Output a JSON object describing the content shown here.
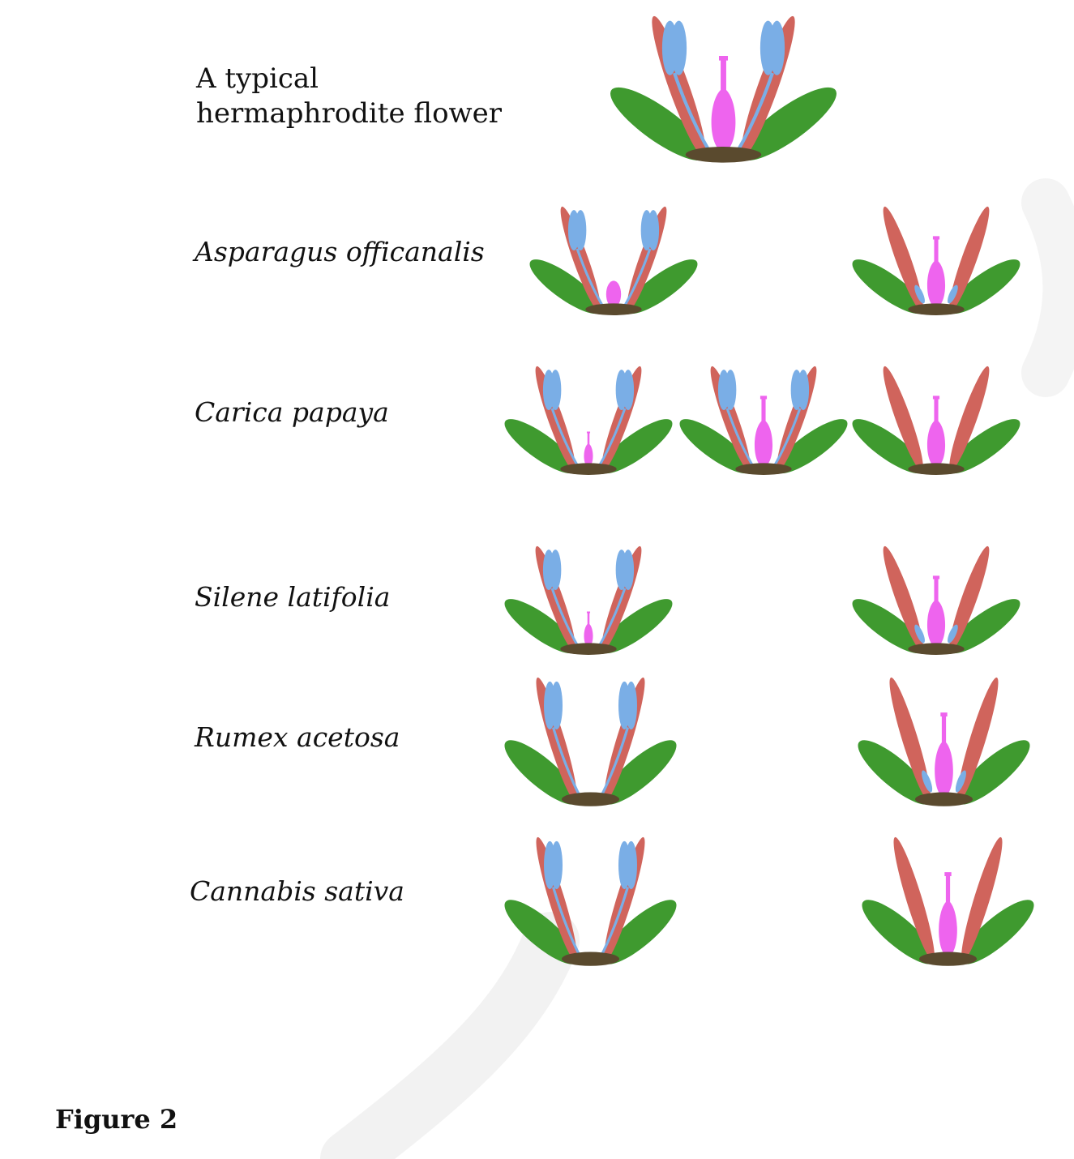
{
  "figure_label": "Figure 2",
  "colors": {
    "sepal": "#3f9a2f",
    "petal": "#d0645c",
    "stamen": "#7aaee6",
    "carpel": "#ee64ee",
    "receptacle": "#5a4a2e"
  },
  "rows": [
    {
      "label": "A typical\nhermaphrodite flower",
      "flowers": [
        {
          "stamens": "full",
          "carpel": "full"
        }
      ]
    },
    {
      "label": "Asparagus officanalis",
      "flowers": [
        {
          "stamens": "full",
          "carpel": "small"
        },
        {
          "stamens": "reduced",
          "carpel": "full"
        }
      ]
    },
    {
      "label": "Carica papaya",
      "flowers": [
        {
          "stamens": "full",
          "carpel": "rudiment"
        },
        {
          "stamens": "full",
          "carpel": "full"
        },
        {
          "stamens": "none",
          "carpel": "full"
        }
      ]
    },
    {
      "label": "Silene latifolia",
      "flowers": [
        {
          "stamens": "full",
          "carpel": "rudiment"
        },
        {
          "stamens": "reduced",
          "carpel": "full"
        }
      ]
    },
    {
      "label": "Rumex acetosa",
      "flowers": [
        {
          "stamens": "full",
          "carpel": "none"
        },
        {
          "stamens": "reduced",
          "carpel": "full"
        }
      ]
    },
    {
      "label": "Cannabis sativa",
      "flowers": [
        {
          "stamens": "full",
          "carpel": "none"
        },
        {
          "stamens": "none",
          "carpel": "full"
        }
      ]
    }
  ]
}
